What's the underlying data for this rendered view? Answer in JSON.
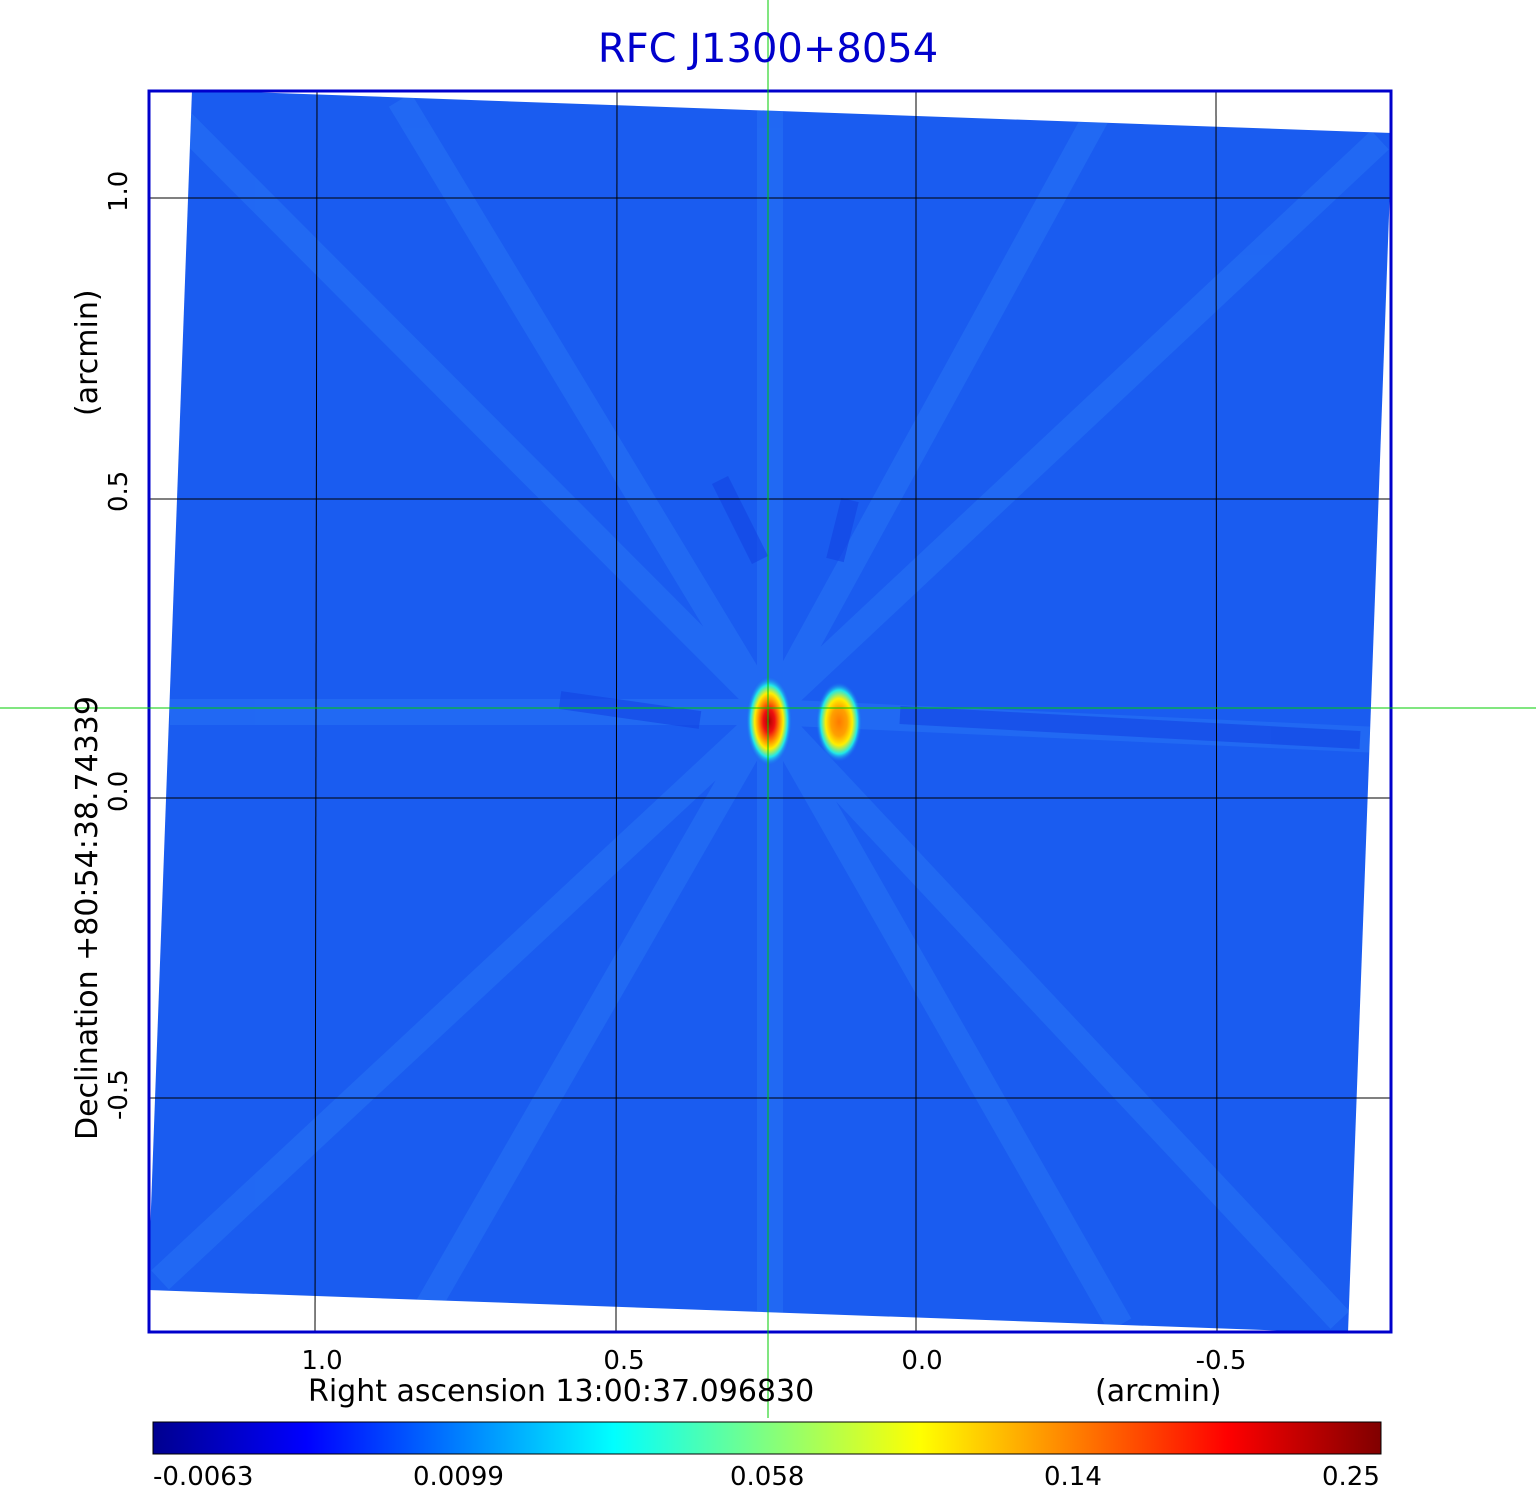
{
  "title": "RFC J1300+8054",
  "x_axis": {
    "label": "Right ascension  13:00:37.096830",
    "unit": "(arcmin)",
    "ticks": [
      "1.0",
      "0.5",
      "0.0",
      "-0.5"
    ]
  },
  "y_axis": {
    "label": "Declination  +80:54:38.74339",
    "unit": "(arcmin)",
    "ticks": [
      "1.0",
      "0.5",
      "0.0",
      "-0.5"
    ]
  },
  "colorbar": {
    "colormap": "jet",
    "ticks": [
      "-0.0063",
      "0.0099",
      "0.058",
      "0.14",
      "0.25"
    ]
  },
  "colors": {
    "title": "#0000cc",
    "frame": "#0000cc",
    "crosshair": "#00cc00",
    "background_map": "#1a5cf0"
  }
}
